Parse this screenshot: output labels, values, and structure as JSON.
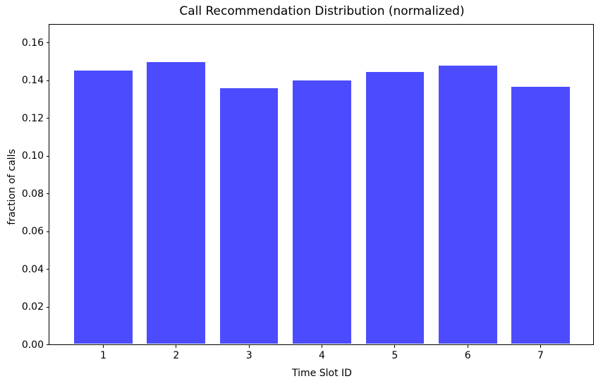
{
  "chart_data": {
    "type": "bar",
    "title": "Call Recommendation Distribution (normalized)",
    "xlabel": "Time Slot ID",
    "ylabel": "fraction of calls",
    "categories": [
      "1",
      "2",
      "3",
      "4",
      "5",
      "6",
      "7"
    ],
    "values": [
      0.1452,
      0.1497,
      0.136,
      0.1401,
      0.1445,
      0.1478,
      0.1367
    ],
    "ytick_labels": [
      "0.00",
      "0.02",
      "0.04",
      "0.06",
      "0.08",
      "0.10",
      "0.12",
      "0.14",
      "0.16"
    ],
    "ylim": [
      0,
      0.17
    ],
    "bar_width_fraction": 0.8,
    "grid": false,
    "legend": null,
    "colors": {
      "bar": "#4c4cfe",
      "axis": "#000000",
      "text": "#000000",
      "background": "#ffffff"
    }
  }
}
